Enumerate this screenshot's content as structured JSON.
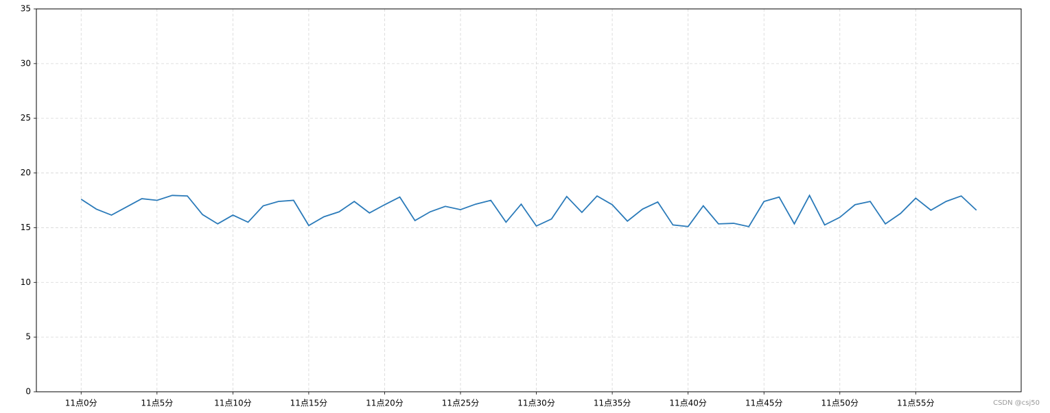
{
  "chart_data": {
    "type": "line",
    "categories": [
      "11点0分",
      null,
      null,
      null,
      null,
      "11点5分",
      null,
      null,
      null,
      null,
      "11点10分",
      null,
      null,
      null,
      null,
      "11点15分",
      null,
      null,
      null,
      null,
      "11点20分",
      null,
      null,
      null,
      null,
      "11点25分",
      null,
      null,
      null,
      null,
      "11点30分",
      null,
      null,
      null,
      null,
      "11点35分",
      null,
      null,
      null,
      null,
      "11点40分",
      null,
      null,
      null,
      null,
      "11点45分",
      null,
      null,
      null,
      null,
      "11点50分",
      null,
      null,
      null,
      null,
      "11点55分",
      null,
      null,
      null,
      null
    ],
    "values": [
      17.6,
      16.7,
      16.15,
      16.9,
      17.65,
      17.5,
      17.95,
      17.9,
      16.2,
      15.35,
      16.15,
      15.5,
      17.0,
      17.4,
      17.5,
      15.2,
      16.0,
      16.45,
      17.4,
      16.35,
      17.1,
      17.8,
      15.65,
      16.45,
      16.95,
      16.65,
      17.15,
      17.5,
      15.5,
      17.15,
      15.15,
      15.8,
      17.85,
      16.4,
      17.9,
      17.1,
      15.6,
      16.7,
      17.35,
      15.25,
      15.1,
      17.0,
      15.35,
      15.4,
      15.1,
      17.4,
      17.8,
      15.35,
      17.95,
      15.25,
      15.95,
      17.1,
      17.4,
      15.35,
      16.3,
      17.7,
      16.6,
      17.4,
      17.9,
      16.6
    ],
    "color": "#2a7ab9",
    "ylim": [
      0,
      35
    ],
    "yticks": [
      0,
      5,
      10,
      15,
      20,
      25,
      30,
      35
    ],
    "grid": true
  },
  "watermark": "CSDN @csj50"
}
